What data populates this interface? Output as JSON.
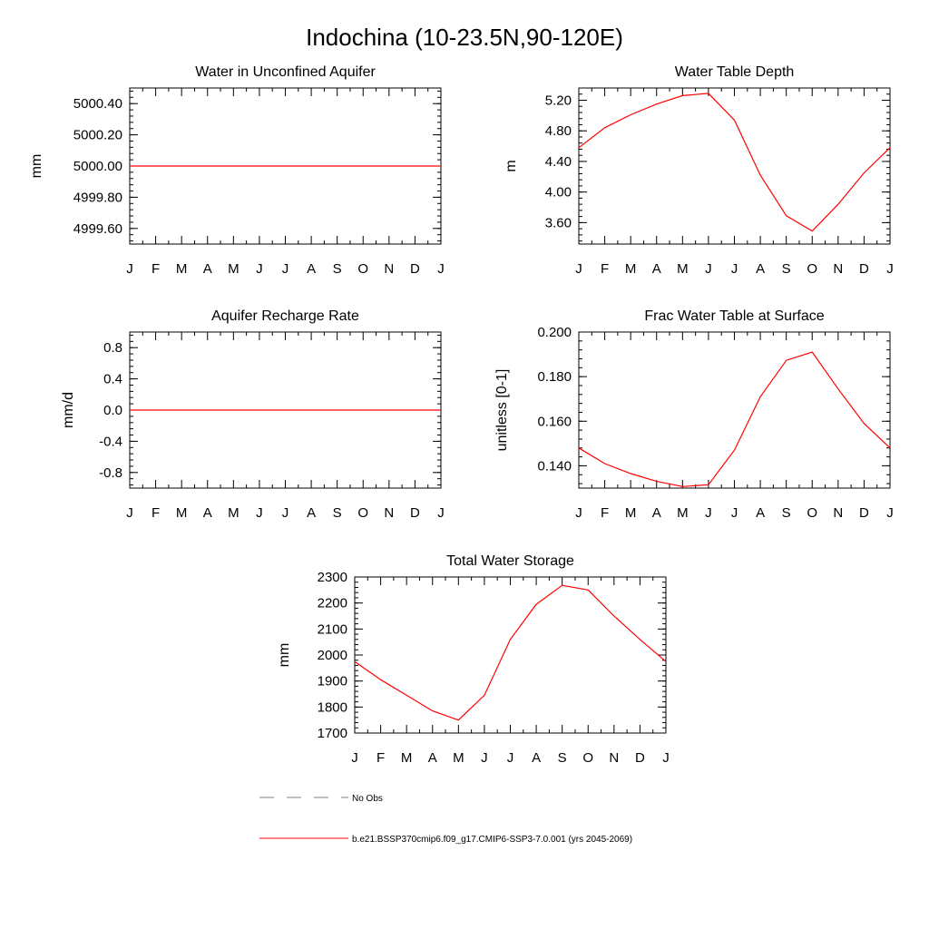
{
  "page": {
    "title": "Indochina (10-23.5N,90-120E)",
    "months": [
      "J",
      "F",
      "M",
      "A",
      "M",
      "J",
      "J",
      "A",
      "S",
      "O",
      "N",
      "D",
      "J"
    ]
  },
  "colors": {
    "series": "#ff0000",
    "obs": "#808080",
    "axis": "#000000"
  },
  "legend": {
    "obs_label": "No Obs",
    "model_label": "b.e21.BSSP370cmip6.f09_g17.CMIP6-SSP3-7.0.001 (yrs 2045-2069)"
  },
  "chart_data": [
    {
      "type": "line",
      "title": "Water in Unconfined Aquifer",
      "ylabel": "mm",
      "ylim": [
        4999.5,
        5000.5
      ],
      "yticks": [
        4999.6,
        4999.8,
        5000.0,
        5000.2,
        5000.4
      ],
      "ytick_labels": [
        "4999.60",
        "4999.80",
        "5000.00",
        "5000.20",
        "5000.40"
      ],
      "categories": [
        "J",
        "F",
        "M",
        "A",
        "M",
        "J",
        "J",
        "A",
        "S",
        "O",
        "N",
        "D",
        "J"
      ],
      "series": [
        {
          "values": [
            5000.0,
            5000.0,
            5000.0,
            5000.0,
            5000.0,
            5000.0,
            5000.0,
            5000.0,
            5000.0,
            5000.0,
            5000.0,
            5000.0,
            5000.0
          ]
        }
      ]
    },
    {
      "type": "line",
      "title": "Water Table Depth",
      "ylabel": "m",
      "ylim": [
        3.32,
        5.36
      ],
      "yticks": [
        3.6,
        4.0,
        4.4,
        4.8,
        5.2
      ],
      "ytick_labels": [
        "3.60",
        "4.00",
        "4.40",
        "4.80",
        "5.20"
      ],
      "categories": [
        "J",
        "F",
        "M",
        "A",
        "M",
        "J",
        "J",
        "A",
        "S",
        "O",
        "N",
        "D",
        "J"
      ],
      "series": [
        {
          "values": [
            4.58,
            4.84,
            5.01,
            5.15,
            5.26,
            5.29,
            4.94,
            4.22,
            3.69,
            3.49,
            3.84,
            4.25,
            4.58
          ]
        }
      ]
    },
    {
      "type": "line",
      "title": "Aquifer Recharge Rate",
      "ylabel": "mm/d",
      "ylim": [
        -1.0,
        1.0
      ],
      "yticks": [
        -0.8,
        -0.4,
        0.0,
        0.4,
        0.8
      ],
      "ytick_labels": [
        "-0.8",
        "-0.4",
        "0.0",
        "0.4",
        "0.8"
      ],
      "categories": [
        "J",
        "F",
        "M",
        "A",
        "M",
        "J",
        "J",
        "A",
        "S",
        "O",
        "N",
        "D",
        "J"
      ],
      "series": [
        {
          "values": [
            0,
            0,
            0,
            0,
            0,
            0,
            0,
            0,
            0,
            0,
            0,
            0,
            0
          ]
        }
      ]
    },
    {
      "type": "line",
      "title": "Frac Water Table at Surface",
      "ylabel": "unitless [0-1]",
      "ylim": [
        0.13,
        0.2
      ],
      "yticks": [
        0.14,
        0.16,
        0.18,
        0.2
      ],
      "ytick_labels": [
        "0.140",
        "0.160",
        "0.180",
        "0.200"
      ],
      "categories": [
        "J",
        "F",
        "M",
        "A",
        "M",
        "J",
        "J",
        "A",
        "S",
        "O",
        "N",
        "D",
        "J"
      ],
      "series": [
        {
          "values": [
            0.148,
            0.141,
            0.1365,
            0.133,
            0.1307,
            0.1315,
            0.147,
            0.171,
            0.1873,
            0.191,
            0.1745,
            0.159,
            0.148
          ]
        }
      ]
    },
    {
      "type": "line",
      "title": "Total Water Storage",
      "ylabel": "mm",
      "ylim": [
        1700,
        2300
      ],
      "yticks": [
        1700,
        1800,
        1900,
        2000,
        2100,
        2200,
        2300
      ],
      "ytick_labels": [
        "1700",
        "1800",
        "1900",
        "2000",
        "2100",
        "2200",
        "2300"
      ],
      "categories": [
        "J",
        "F",
        "M",
        "A",
        "M",
        "J",
        "J",
        "A",
        "S",
        "O",
        "N",
        "D",
        "J"
      ],
      "series": [
        {
          "values": [
            1975,
            1905,
            1845,
            1785,
            1750,
            1845,
            2060,
            2195,
            2268,
            2250,
            2150,
            2060,
            1975
          ]
        }
      ]
    }
  ]
}
